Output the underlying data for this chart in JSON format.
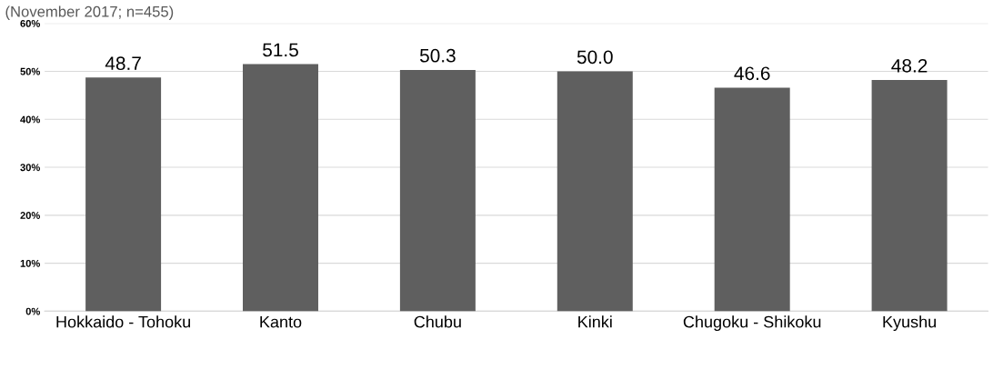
{
  "chart_data": {
    "type": "bar",
    "subtitle": "(November 2017; n=455)",
    "categories": [
      "Hokkaido - Tohoku",
      "Kanto",
      "Chubu",
      "Kinki",
      "Chugoku - Shikoku",
      "Kyushu"
    ],
    "values": [
      48.7,
      51.5,
      50.3,
      50.0,
      46.6,
      48.2
    ],
    "color": "#5f5f5f",
    "ylim": [
      0,
      60
    ],
    "yticks": [
      {
        "value": 0,
        "label": "0%"
      },
      {
        "value": 10,
        "label": "10%"
      },
      {
        "value": 20,
        "label": "20%"
      },
      {
        "value": 30,
        "label": "30%"
      },
      {
        "value": 40,
        "label": "40%"
      },
      {
        "value": 50,
        "label": "50%"
      },
      {
        "value": 60,
        "label": "60%"
      }
    ],
    "value_labels": [
      "48.7",
      "51.5",
      "50.3",
      "50.0",
      "46.6",
      "48.2"
    ],
    "grid": "y"
  }
}
